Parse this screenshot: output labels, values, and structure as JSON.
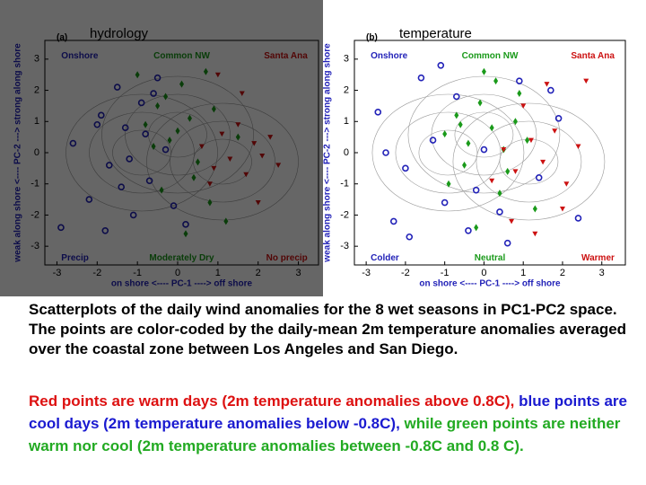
{
  "chart_data": [
    {
      "type": "scatter",
      "panel": "(a)",
      "title": "hydrology",
      "xlabel": "on shore <---- PC-1 ----> off shore",
      "ylabel": "weak along shore <---- PC-2 ---> strong along shore",
      "xlim": [
        -3.3,
        3.5
      ],
      "ylim": [
        -3.6,
        3.6
      ],
      "xticks": [
        -3,
        -2,
        -1,
        0,
        1,
        2,
        3
      ],
      "yticks": [
        -3,
        -2,
        -1,
        0,
        1,
        2,
        3
      ],
      "annotations": [
        {
          "text": "Onshore",
          "color": "#2222b8"
        },
        {
          "text": "Common NW",
          "color": "#1a9a1a"
        },
        {
          "text": "Santa Ana",
          "color": "#cc1111"
        },
        {
          "text": "Precip",
          "color": "#2222b8"
        },
        {
          "text": "Moderately Dry",
          "color": "#1a9a1a"
        },
        {
          "text": "No precip",
          "color": "#cc1111"
        }
      ],
      "series": [
        {
          "color": "#2222b8",
          "marker": "circle",
          "x": [
            -2.6,
            -2.2,
            -1.9,
            -1.7,
            -1.5,
            -1.3,
            -1.1,
            -0.9,
            -0.7,
            -0.5,
            -0.3,
            -0.1,
            0.2,
            -1.8,
            -2.0,
            -1.2,
            -0.8,
            -2.9,
            -1.4,
            -0.6
          ],
          "y": [
            0.3,
            -1.5,
            1.2,
            -0.4,
            2.1,
            0.8,
            -2.0,
            1.6,
            -0.9,
            2.4,
            0.1,
            -1.7,
            -2.3,
            -2.5,
            0.9,
            -0.2,
            0.6,
            -2.4,
            -1.1,
            1.9
          ]
        },
        {
          "color": "#1a9a1a",
          "marker": "diamond",
          "x": [
            -0.8,
            -0.5,
            -0.2,
            0.1,
            0.3,
            0.5,
            0.7,
            -0.4,
            0.0,
            0.9,
            1.2,
            -1.0,
            0.4,
            -0.6,
            0.2,
            1.5,
            0.8,
            -0.3
          ],
          "y": [
            0.9,
            1.5,
            0.4,
            2.2,
            1.1,
            -0.3,
            2.6,
            -1.2,
            0.7,
            1.4,
            -2.2,
            2.5,
            -0.8,
            0.2,
            -2.6,
            0.5,
            -1.6,
            1.8
          ]
        },
        {
          "color": "#cc1111",
          "marker": "triangle",
          "x": [
            0.6,
            0.9,
            1.1,
            1.3,
            1.5,
            1.7,
            1.9,
            2.1,
            2.3,
            2.5,
            1.0,
            1.6,
            2.0,
            0.8
          ],
          "y": [
            0.2,
            -0.5,
            0.6,
            -0.2,
            0.9,
            -0.7,
            0.3,
            -0.1,
            0.5,
            -0.4,
            2.5,
            1.9,
            -1.6,
            -1.0
          ]
        }
      ]
    },
    {
      "type": "scatter",
      "panel": "(b)",
      "title": "temperature",
      "xlabel": "on shore <---- PC-1 ----> off shore",
      "ylabel": "weak along shore <---- PC-2 ---> strong along shore",
      "xlim": [
        -3.3,
        3.6
      ],
      "ylim": [
        -3.6,
        3.6
      ],
      "xticks": [
        -3,
        -2,
        -1,
        0,
        1,
        2,
        3
      ],
      "yticks": [
        -3,
        -2,
        -1,
        0,
        1,
        2,
        3
      ],
      "annotations": [
        {
          "text": "Onshore",
          "color": "#2222b8"
        },
        {
          "text": "Common NW",
          "color": "#1a9a1a"
        },
        {
          "text": "Santa Ana",
          "color": "#cc1111"
        },
        {
          "text": "Colder",
          "color": "#2222b8"
        },
        {
          "text": "Neutral",
          "color": "#1a9a1a"
        },
        {
          "text": "Warmer",
          "color": "#cc1111"
        }
      ],
      "series": [
        {
          "color": "#2222b8",
          "marker": "circle",
          "x": [
            -2.7,
            -2.3,
            -2.0,
            -1.6,
            -1.3,
            -1.0,
            -0.7,
            -0.4,
            0.0,
            0.4,
            0.9,
            1.4,
            1.9,
            2.4,
            -1.9,
            -1.1,
            0.6,
            1.7,
            -2.5,
            -0.2
          ],
          "y": [
            1.3,
            -2.2,
            -0.5,
            2.4,
            0.4,
            -1.6,
            1.8,
            -2.5,
            0.1,
            -1.9,
            2.3,
            -0.8,
            1.1,
            -2.1,
            -2.7,
            2.8,
            -2.9,
            2.0,
            0.0,
            -1.2
          ]
        },
        {
          "color": "#1a9a1a",
          "marker": "diamond",
          "x": [
            -1.0,
            -0.7,
            -0.4,
            -0.1,
            0.2,
            0.5,
            0.8,
            1.1,
            -0.5,
            0.3,
            0.6,
            -0.9,
            0.0,
            1.3,
            -0.2,
            0.9,
            0.4,
            -0.6
          ],
          "y": [
            0.6,
            1.2,
            0.3,
            1.6,
            0.8,
            0.1,
            1.0,
            0.4,
            -0.4,
            2.3,
            -0.6,
            -1.0,
            2.6,
            -1.8,
            -2.4,
            1.9,
            -1.3,
            0.9
          ]
        },
        {
          "color": "#cc1111",
          "marker": "triangle",
          "x": [
            0.5,
            0.8,
            1.2,
            1.5,
            1.8,
            2.1,
            2.4,
            1.0,
            1.6,
            2.0,
            0.7,
            1.3,
            2.6,
            0.2
          ],
          "y": [
            0.1,
            -0.6,
            0.4,
            -0.3,
            0.7,
            -1.0,
            0.2,
            1.5,
            2.2,
            -1.8,
            -2.2,
            -2.6,
            2.3,
            -0.9
          ]
        }
      ]
    }
  ],
  "caption": "Scatterplots of the daily wind anomalies for the 8 wet seasons in PC1-PC2 space.  The points are color-coded by the daily-mean 2m temperature anomalies averaged over the coastal zone between Los Angeles and San Diego.",
  "legend_text": [
    {
      "text": "Red points are warm days (2m temperature anomalies above 0.8C),",
      "color": "#dd1111"
    },
    {
      "text": " blue points are cool days (2m temperature anomalies below -0.8C),",
      "color": "#1a1ad0"
    },
    {
      "text": " while green points are neither warm nor cool (2m temperature anomalies between -0.8C and 0.8 C).",
      "color": "#22aa22"
    }
  ]
}
